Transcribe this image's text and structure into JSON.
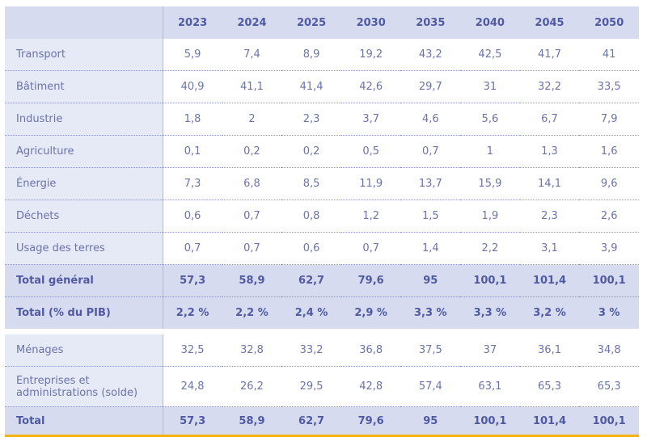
{
  "years": [
    "2023",
    "2024",
    "2025",
    "2030",
    "2035",
    "2040",
    "2045",
    "2050"
  ],
  "sectors": [
    {
      "label": "Transport",
      "values": [
        "5,9",
        "7,4",
        "8,9",
        "19,2",
        "43,2",
        "42,5",
        "41,7",
        "41"
      ]
    },
    {
      "label": "Bâtiment",
      "values": [
        "40,9",
        "41,1",
        "41,4",
        "42,6",
        "29,7",
        "31",
        "32,2",
        "33,5"
      ]
    },
    {
      "label": "Industrie",
      "values": [
        "1,8",
        "2",
        "2,3",
        "3,7",
        "4,6",
        "5,6",
        "6,7",
        "7,9"
      ]
    },
    {
      "label": "Agriculture",
      "values": [
        "0,1",
        "0,2",
        "0,2",
        "0,5",
        "0,7",
        "1",
        "1,3",
        "1,6"
      ]
    },
    {
      "label": "Énergie",
      "values": [
        "7,3",
        "6,8",
        "8,5",
        "11,9",
        "13,7",
        "15,9",
        "14,1",
        "9,6"
      ]
    },
    {
      "label": "Déchets",
      "values": [
        "0,6",
        "0,7",
        "0,8",
        "1,2",
        "1,5",
        "1,9",
        "2,3",
        "2,6"
      ]
    },
    {
      "label": "Usage des terres",
      "values": [
        "0,7",
        "0,7",
        "0,6",
        "0,7",
        "1,4",
        "2,2",
        "3,1",
        "3,9"
      ]
    }
  ],
  "total_general": {
    "label": "Total général",
    "values": [
      "57,3",
      "58,9",
      "62,7",
      "79,6",
      "95",
      "100,1",
      "101,4",
      "100,1"
    ]
  },
  "total_pib": {
    "label": "Total (% du PIB)",
    "values": [
      "2,2 %",
      "2,2 %",
      "2,4 %",
      "2,9 %",
      "3,3 %",
      "3,3 %",
      "3,2 %",
      "3 %"
    ]
  },
  "actors": [
    {
      "label": "Ménages",
      "values": [
        "32,5",
        "32,8",
        "33,2",
        "36,8",
        "37,5",
        "37",
        "36,1",
        "34,8"
      ]
    },
    {
      "label": "Entreprises et\nadministrations (solde)",
      "values": [
        "24,8",
        "26,2",
        "29,5",
        "42,8",
        "57,4",
        "63,1",
        "65,3",
        "65,3"
      ]
    }
  ],
  "total": {
    "label": "Total",
    "values": [
      "57,3",
      "58,9",
      "62,7",
      "79,6",
      "95",
      "100,1",
      "101,4",
      "100,1"
    ]
  }
}
